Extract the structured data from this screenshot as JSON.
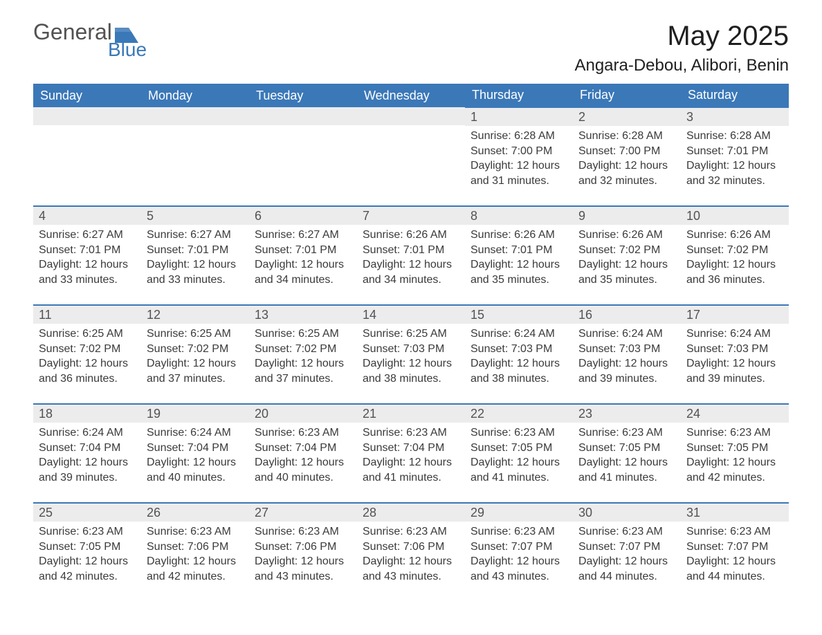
{
  "logo": {
    "general": "General",
    "blue": "Blue",
    "flag_color": "#3b78b8"
  },
  "header": {
    "month_title": "May 2025",
    "location": "Angara-Debou, Alibori, Benin"
  },
  "colors": {
    "header_bg": "#3b78b8",
    "header_text": "#ffffff",
    "daynum_bg": "#ececec",
    "daynum_text": "#525252",
    "body_text": "#3a3a3a",
    "row_border": "#3b78b8",
    "page_bg": "#ffffff"
  },
  "weekdays": [
    "Sunday",
    "Monday",
    "Tuesday",
    "Wednesday",
    "Thursday",
    "Friday",
    "Saturday"
  ],
  "leading_blanks": 4,
  "days": [
    {
      "n": "1",
      "sunrise": "6:28 AM",
      "sunset": "7:00 PM",
      "daylight": "12 hours and 31 minutes."
    },
    {
      "n": "2",
      "sunrise": "6:28 AM",
      "sunset": "7:00 PM",
      "daylight": "12 hours and 32 minutes."
    },
    {
      "n": "3",
      "sunrise": "6:28 AM",
      "sunset": "7:01 PM",
      "daylight": "12 hours and 32 minutes."
    },
    {
      "n": "4",
      "sunrise": "6:27 AM",
      "sunset": "7:01 PM",
      "daylight": "12 hours and 33 minutes."
    },
    {
      "n": "5",
      "sunrise": "6:27 AM",
      "sunset": "7:01 PM",
      "daylight": "12 hours and 33 minutes."
    },
    {
      "n": "6",
      "sunrise": "6:27 AM",
      "sunset": "7:01 PM",
      "daylight": "12 hours and 34 minutes."
    },
    {
      "n": "7",
      "sunrise": "6:26 AM",
      "sunset": "7:01 PM",
      "daylight": "12 hours and 34 minutes."
    },
    {
      "n": "8",
      "sunrise": "6:26 AM",
      "sunset": "7:01 PM",
      "daylight": "12 hours and 35 minutes."
    },
    {
      "n": "9",
      "sunrise": "6:26 AM",
      "sunset": "7:02 PM",
      "daylight": "12 hours and 35 minutes."
    },
    {
      "n": "10",
      "sunrise": "6:26 AM",
      "sunset": "7:02 PM",
      "daylight": "12 hours and 36 minutes."
    },
    {
      "n": "11",
      "sunrise": "6:25 AM",
      "sunset": "7:02 PM",
      "daylight": "12 hours and 36 minutes."
    },
    {
      "n": "12",
      "sunrise": "6:25 AM",
      "sunset": "7:02 PM",
      "daylight": "12 hours and 37 minutes."
    },
    {
      "n": "13",
      "sunrise": "6:25 AM",
      "sunset": "7:02 PM",
      "daylight": "12 hours and 37 minutes."
    },
    {
      "n": "14",
      "sunrise": "6:25 AM",
      "sunset": "7:03 PM",
      "daylight": "12 hours and 38 minutes."
    },
    {
      "n": "15",
      "sunrise": "6:24 AM",
      "sunset": "7:03 PM",
      "daylight": "12 hours and 38 minutes."
    },
    {
      "n": "16",
      "sunrise": "6:24 AM",
      "sunset": "7:03 PM",
      "daylight": "12 hours and 39 minutes."
    },
    {
      "n": "17",
      "sunrise": "6:24 AM",
      "sunset": "7:03 PM",
      "daylight": "12 hours and 39 minutes."
    },
    {
      "n": "18",
      "sunrise": "6:24 AM",
      "sunset": "7:04 PM",
      "daylight": "12 hours and 39 minutes."
    },
    {
      "n": "19",
      "sunrise": "6:24 AM",
      "sunset": "7:04 PM",
      "daylight": "12 hours and 40 minutes."
    },
    {
      "n": "20",
      "sunrise": "6:23 AM",
      "sunset": "7:04 PM",
      "daylight": "12 hours and 40 minutes."
    },
    {
      "n": "21",
      "sunrise": "6:23 AM",
      "sunset": "7:04 PM",
      "daylight": "12 hours and 41 minutes."
    },
    {
      "n": "22",
      "sunrise": "6:23 AM",
      "sunset": "7:05 PM",
      "daylight": "12 hours and 41 minutes."
    },
    {
      "n": "23",
      "sunrise": "6:23 AM",
      "sunset": "7:05 PM",
      "daylight": "12 hours and 41 minutes."
    },
    {
      "n": "24",
      "sunrise": "6:23 AM",
      "sunset": "7:05 PM",
      "daylight": "12 hours and 42 minutes."
    },
    {
      "n": "25",
      "sunrise": "6:23 AM",
      "sunset": "7:05 PM",
      "daylight": "12 hours and 42 minutes."
    },
    {
      "n": "26",
      "sunrise": "6:23 AM",
      "sunset": "7:06 PM",
      "daylight": "12 hours and 42 minutes."
    },
    {
      "n": "27",
      "sunrise": "6:23 AM",
      "sunset": "7:06 PM",
      "daylight": "12 hours and 43 minutes."
    },
    {
      "n": "28",
      "sunrise": "6:23 AM",
      "sunset": "7:06 PM",
      "daylight": "12 hours and 43 minutes."
    },
    {
      "n": "29",
      "sunrise": "6:23 AM",
      "sunset": "7:07 PM",
      "daylight": "12 hours and 43 minutes."
    },
    {
      "n": "30",
      "sunrise": "6:23 AM",
      "sunset": "7:07 PM",
      "daylight": "12 hours and 44 minutes."
    },
    {
      "n": "31",
      "sunrise": "6:23 AM",
      "sunset": "7:07 PM",
      "daylight": "12 hours and 44 minutes."
    }
  ],
  "labels": {
    "sunrise": "Sunrise:",
    "sunset": "Sunset:",
    "daylight": "Daylight:"
  }
}
